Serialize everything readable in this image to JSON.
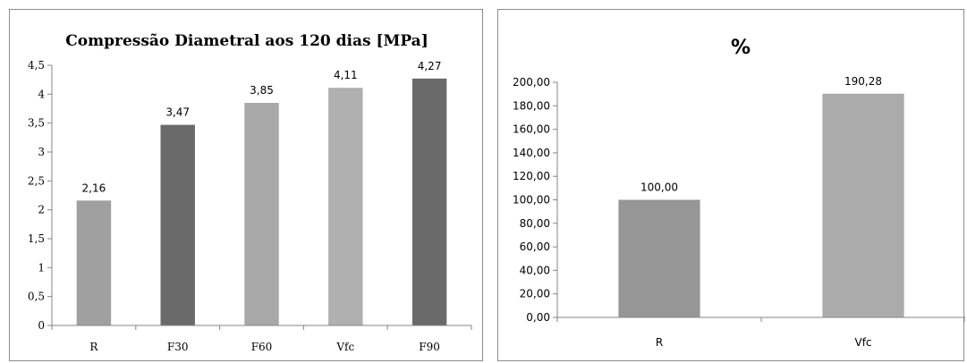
{
  "chart_data": [
    {
      "type": "bar",
      "title": "Compressão Diametral aos 120 dias [MPa]",
      "categories": [
        "R",
        "F30",
        "F60",
        "Vfc",
        "F90"
      ],
      "values": [
        2.16,
        3.47,
        3.85,
        4.11,
        4.27
      ],
      "data_labels": [
        "2,16",
        "3,47",
        "3,85",
        "4,11",
        "4,27"
      ],
      "bar_colors": [
        "#a0a0a0",
        "#6a6a6a",
        "#a8a8a8",
        "#b0b0b0",
        "#6a6a6a"
      ],
      "ylim": [
        0,
        4.5
      ],
      "yticks": [
        0,
        0.5,
        1,
        1.5,
        2,
        2.5,
        3,
        3.5,
        4,
        4.5
      ],
      "ytick_labels": [
        "0",
        "0,5",
        "1",
        "1,5",
        "2",
        "2,5",
        "3",
        "3,5",
        "4",
        "4,5"
      ],
      "xlabel": "",
      "ylabel": "",
      "grid": false,
      "legend": "none"
    },
    {
      "type": "bar",
      "title": "%",
      "categories": [
        "R",
        "Vfc"
      ],
      "values": [
        100.0,
        190.28
      ],
      "data_labels": [
        "100,00",
        "190,28"
      ],
      "bar_colors": [
        "#969696",
        "#ababab"
      ],
      "ylim": [
        0,
        200
      ],
      "yticks": [
        0,
        20,
        40,
        60,
        80,
        100,
        120,
        140,
        160,
        180,
        200
      ],
      "ytick_labels": [
        "0,00",
        "20,00",
        "40,00",
        "60,00",
        "80,00",
        "100,00",
        "120,00",
        "140,00",
        "160,00",
        "180,00",
        "200,00"
      ],
      "xlabel": "",
      "ylabel": "",
      "grid": false,
      "legend": "none"
    }
  ]
}
